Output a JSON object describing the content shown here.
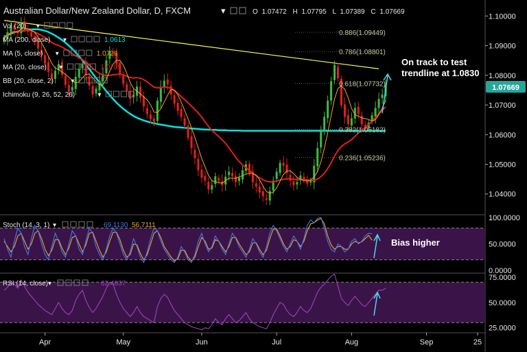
{
  "header": {
    "title": "Australian Dollar/New Zealand Dollar, D, FXCM",
    "ohlc": {
      "o_label": "O",
      "o": "1.07472",
      "h_label": "H",
      "h": "1.07795",
      "l_label": "L",
      "l": "1.07389",
      "c_label": "C",
      "c": "1.07669"
    }
  },
  "indicators": [
    {
      "label": "Vol (20)",
      "value": "",
      "color": "#ffffff"
    },
    {
      "label": "MA (200, close)",
      "value": "1.0613",
      "color": "#00e5e5"
    },
    {
      "label": "MA (5, close)",
      "value": "1.0728",
      "color": "#f5a623"
    },
    {
      "label": "MA (20, close)",
      "value": "1.0709",
      "color": "#e0201b"
    },
    {
      "label": "BB (20, close, 2)",
      "value": "",
      "color": "#ffffff"
    },
    {
      "label": "Ichimoku (9, 26, 52, 26)",
      "value": "",
      "color": "#ffffff"
    }
  ],
  "price_badge": {
    "value": "1.07669",
    "color": "#26a69a"
  },
  "colors": {
    "up": "#3db83d",
    "down": "#e0201b",
    "ma5": "#f5a623",
    "ma20": "#e0201b",
    "ma200": "#00e5e5",
    "trendline": "#ffff4d",
    "stoch_k": "#3b7bf5",
    "stoch_d": "#f5a623",
    "rsi": "#a040c0",
    "band": "#3a1448",
    "annot_arrow": "#4dd9f0"
  },
  "annotations": {
    "price_line1": "On track to test",
    "price_line2": "trendline at 1.0830",
    "stoch": "Bias higher"
  },
  "stoch": {
    "label": "Stoch (14, 3, 1)",
    "k_value": "69.1130",
    "d_value": "56.7111"
  },
  "rsi": {
    "label": "RSI (14, close)",
    "value": "62.4837"
  },
  "chart_data": [
    {
      "type": "candlestick",
      "title": "Australian Dollar/New Zealand Dollar, D, FXCM",
      "ylim": [
        1.033,
        1.104
      ],
      "yticks": [
        "1.10000",
        "1.09000",
        "1.08000",
        "1.07000",
        "1.06000",
        "1.05000",
        "1.04000"
      ],
      "ytick_values": [
        1.1,
        1.09,
        1.08,
        1.07,
        1.06,
        1.05,
        1.04
      ],
      "xticks": [
        "Apr",
        "May",
        "Jun",
        "Jul",
        "Aug",
        "Sep",
        "25"
      ],
      "xtick_bars": [
        12,
        35,
        58,
        80,
        102,
        124,
        139
      ],
      "bars": 141,
      "fib_levels": [
        {
          "label": "0.886(1.09449)",
          "value": 1.09449
        },
        {
          "label": "0.786(1.08801)",
          "value": 1.08801
        },
        {
          "label": "0.618(1.07732)",
          "value": 1.07732
        },
        {
          "label": "0.382(1.06182)",
          "value": 1.06182
        },
        {
          "label": "0.236(1.05236)",
          "value": 1.05236
        }
      ],
      "trendline": {
        "x": [
          0,
          110
        ],
        "y": [
          1.0985,
          1.0822
        ]
      },
      "closes": [
        1.0925,
        1.0945,
        1.0962,
        1.0955,
        1.0942,
        1.0978,
        1.0961,
        1.0947,
        1.093,
        1.0912,
        1.089,
        1.0868,
        1.084,
        1.0812,
        1.079,
        1.0815,
        1.0838,
        1.0802,
        1.0768,
        1.0745,
        1.076,
        1.0795,
        1.0822,
        1.084,
        1.08,
        1.0765,
        1.0735,
        1.0755,
        1.0782,
        1.0805,
        1.085,
        1.088,
        1.0875,
        1.0838,
        1.0805,
        1.0772,
        1.0745,
        1.072,
        1.0735,
        1.0762,
        1.0725,
        1.0695,
        1.067,
        1.0652,
        1.064,
        1.0715,
        1.076,
        1.0782,
        1.077,
        1.0735,
        1.0705,
        1.068,
        1.066,
        1.063,
        1.059,
        1.0555,
        1.052,
        1.048,
        1.0455,
        1.0445,
        1.0415,
        1.043,
        1.046,
        1.0445,
        1.043,
        1.0458,
        1.0475,
        1.046,
        1.044,
        1.0455,
        1.048,
        1.05,
        1.047,
        1.044,
        1.0425,
        1.0405,
        1.0392,
        1.038,
        1.041,
        1.0445,
        1.0475,
        1.0505,
        1.0495,
        1.047,
        1.0445,
        1.043,
        1.044,
        1.0462,
        1.045,
        1.0435,
        1.0445,
        1.0495,
        1.0555,
        1.061,
        1.066,
        1.0715,
        1.078,
        1.0835,
        1.079,
        1.07,
        1.066,
        1.0635,
        1.0655,
        1.069,
        1.067,
        1.0635,
        1.062,
        1.064,
        1.0665,
        1.069,
        1.072,
        1.0735,
        1.0767
      ],
      "ma200": [
        1.093,
        1.0935,
        1.094,
        1.0945,
        1.0948,
        1.095,
        1.0952,
        1.0954,
        1.0955,
        1.0955,
        1.0955,
        1.0953,
        1.095,
        1.0946,
        1.094,
        1.0934,
        1.0927,
        1.0919,
        1.091,
        1.09,
        1.0889,
        1.0877,
        1.0864,
        1.085,
        1.0836,
        1.0821,
        1.0806,
        1.0791,
        1.0776,
        1.0761,
        1.0747,
        1.0733,
        1.072,
        1.0708,
        1.0697,
        1.0687,
        1.0678,
        1.067,
        1.0663,
        1.0657,
        1.0652,
        1.0648,
        1.0644,
        1.0641,
        1.0638,
        1.0636,
        1.0634,
        1.0632,
        1.063,
        1.0628,
        1.0626,
        1.0625,
        1.0624,
        1.0623,
        1.0622,
        1.0621,
        1.062,
        1.0619,
        1.0618,
        1.0617,
        1.0617,
        1.0616,
        1.0616,
        1.0615,
        1.0615,
        1.0615,
        1.0614,
        1.0614,
        1.0614,
        1.0614,
        1.0613,
        1.0613,
        1.0613,
        1.0613,
        1.0613,
        1.0613,
        1.0613,
        1.0613,
        1.0613,
        1.0613,
        1.0613,
        1.0613,
        1.0613,
        1.0613,
        1.0613,
        1.0613,
        1.0613,
        1.0613,
        1.0613,
        1.0613,
        1.0613,
        1.0613,
        1.0613,
        1.0613,
        1.0613,
        1.0613,
        1.0613,
        1.0613,
        1.0613,
        1.0613,
        1.0613,
        1.0613,
        1.0613,
        1.0613,
        1.0613,
        1.0613,
        1.0613,
        1.0613,
        1.0613,
        1.0613,
        1.0613,
        1.0613,
        1.0613
      ]
    },
    {
      "type": "line",
      "title": "Stoch (14, 3, 1)",
      "ylim": [
        -5,
        105
      ],
      "yticks": [
        "100.0000",
        "50.0000",
        "0.0000"
      ],
      "ytick_values": [
        100,
        50,
        0
      ],
      "band": [
        20,
        80
      ],
      "series": [
        {
          "name": "%K",
          "values": [
            60,
            40,
            25,
            55,
            80,
            70,
            45,
            30,
            60,
            85,
            75,
            50,
            30,
            20,
            45,
            70,
            55,
            35,
            25,
            50,
            75,
            65,
            40,
            30,
            55,
            80,
            70,
            45,
            30,
            20,
            40,
            65,
            80,
            70,
            50,
            30,
            20,
            35,
            60,
            45,
            25,
            15,
            35,
            60,
            80,
            75,
            55,
            40,
            30,
            20,
            15,
            25,
            45,
            35,
            20,
            15,
            30,
            55,
            70,
            50,
            35,
            45,
            65,
            55,
            40,
            30,
            50,
            70,
            60,
            45,
            35,
            25,
            40,
            60,
            50,
            35,
            25,
            45,
            70,
            85,
            75,
            60,
            45,
            35,
            50,
            65,
            55,
            40,
            60,
            85,
            95,
            90,
            98,
            100,
            80,
            55,
            40,
            35,
            50,
            45,
            35,
            40,
            55,
            60,
            50,
            55,
            65,
            70,
            69
          ]
        },
        {
          "name": "%D",
          "values": [
            55,
            45,
            35,
            45,
            65,
            70,
            55,
            40,
            50,
            70,
            75,
            60,
            40,
            28,
            38,
            58,
            58,
            42,
            30,
            42,
            62,
            65,
            50,
            35,
            48,
            70,
            72,
            55,
            38,
            25,
            35,
            55,
            72,
            72,
            58,
            38,
            25,
            30,
            50,
            48,
            32,
            20,
            30,
            50,
            70,
            75,
            62,
            45,
            35,
            25,
            18,
            22,
            38,
            38,
            25,
            18,
            25,
            45,
            62,
            55,
            40,
            42,
            58,
            55,
            45,
            35,
            45,
            62,
            62,
            50,
            40,
            30,
            35,
            52,
            52,
            40,
            30,
            38,
            60,
            78,
            78,
            65,
            50,
            40,
            45,
            58,
            55,
            45,
            55,
            75,
            88,
            90,
            95,
            98,
            88,
            65,
            48,
            40,
            45,
            45,
            40,
            40,
            50,
            55,
            52,
            54,
            60,
            66,
            57
          ]
        }
      ]
    },
    {
      "type": "line",
      "title": "RSI (14, close)",
      "ylim": [
        20,
        79
      ],
      "yticks": [
        "75.0000",
        "50.0000",
        "25.0000"
      ],
      "ytick_values": [
        75,
        50,
        25
      ],
      "band": [
        30,
        70
      ],
      "series": [
        {
          "name": "RSI",
          "values": [
            62,
            65,
            70,
            68,
            64,
            72,
            66,
            60,
            56,
            52,
            48,
            45,
            42,
            40,
            38,
            44,
            50,
            44,
            40,
            38,
            42,
            52,
            58,
            62,
            52,
            45,
            40,
            44,
            50,
            56,
            64,
            70,
            68,
            58,
            50,
            44,
            40,
            36,
            40,
            46,
            40,
            36,
            34,
            32,
            30,
            46,
            54,
            58,
            55,
            48,
            42,
            38,
            34,
            30,
            28,
            26,
            25,
            24,
            23,
            25,
            24,
            28,
            34,
            30,
            28,
            34,
            38,
            34,
            30,
            32,
            36,
            40,
            34,
            30,
            28,
            26,
            25,
            24,
            30,
            38,
            44,
            50,
            48,
            42,
            38,
            36,
            40,
            46,
            42,
            40,
            44,
            52,
            60,
            65,
            68,
            72,
            76,
            78,
            66,
            54,
            50,
            47,
            52,
            56,
            52,
            48,
            46,
            50,
            54,
            58,
            62,
            62,
            64
          ]
        }
      ]
    }
  ]
}
